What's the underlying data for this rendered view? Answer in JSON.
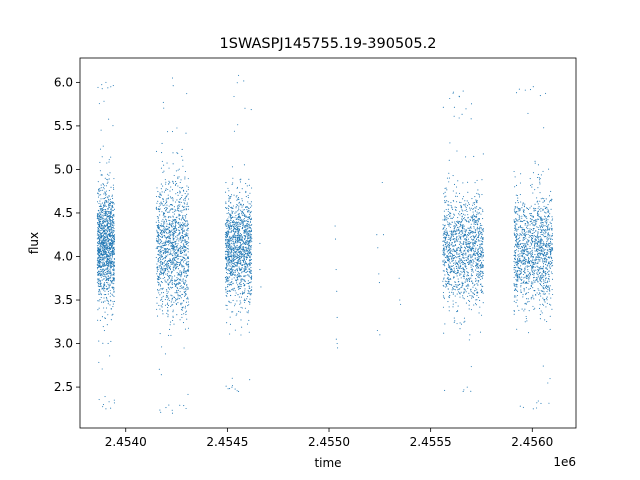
{
  "chart_data": {
    "type": "scatter",
    "title": "1SWASPJ145755.19-390505.2",
    "xlabel": "time",
    "ylabel": "flux",
    "x_offset_label": "1e6",
    "xlim": [
      2453775,
      2456215
    ],
    "ylim": [
      2.03,
      6.28
    ],
    "x_ticks": [
      2454000,
      2454500,
      2455000,
      2455500,
      2456000
    ],
    "x_tick_labels": [
      "2.4540",
      "2.4545",
      "2.4550",
      "2.4555",
      "2.4560"
    ],
    "y_ticks": [
      2.5,
      3.0,
      3.5,
      4.0,
      4.5,
      5.0,
      5.5,
      6.0
    ],
    "y_tick_labels": [
      "2.5",
      "3.0",
      "3.5",
      "4.0",
      "4.5",
      "5.0",
      "5.5",
      "6.0"
    ],
    "grid": false,
    "marker_color": "#1f77b4",
    "clusters": [
      {
        "x_start": 2453860,
        "x_end": 2453945,
        "y_center": 4.15,
        "y_spread": 0.32,
        "max_y": 6.0,
        "min_y": 2.25
      },
      {
        "x_start": 2454150,
        "x_end": 2454310,
        "y_center": 4.1,
        "y_spread": 0.38,
        "max_y": 6.05,
        "min_y": 2.2
      },
      {
        "x_start": 2454490,
        "x_end": 2454620,
        "y_center": 4.1,
        "y_spread": 0.3,
        "max_y": 6.08,
        "min_y": 2.45
      },
      {
        "x_start": 2455560,
        "x_end": 2455760,
        "y_center": 4.08,
        "y_spread": 0.32,
        "max_y": 5.9,
        "min_y": 2.45
      },
      {
        "x_start": 2455910,
        "x_end": 2456100,
        "y_center": 4.08,
        "y_spread": 0.32,
        "max_y": 5.95,
        "min_y": 2.25
      }
    ],
    "sparse_points": [
      {
        "x": 2454660,
        "y": 4.15
      },
      {
        "x": 2454665,
        "y": 3.65
      },
      {
        "x": 2454660,
        "y": 3.85
      },
      {
        "x": 2455030,
        "y": 4.35
      },
      {
        "x": 2455032,
        "y": 4.2
      },
      {
        "x": 2455035,
        "y": 3.85
      },
      {
        "x": 2455038,
        "y": 3.6
      },
      {
        "x": 2455040,
        "y": 3.3
      },
      {
        "x": 2455040,
        "y": 3.0
      },
      {
        "x": 2455042,
        "y": 2.95
      },
      {
        "x": 2455036,
        "y": 3.05
      },
      {
        "x": 2455235,
        "y": 4.25
      },
      {
        "x": 2455240,
        "y": 4.1
      },
      {
        "x": 2455245,
        "y": 3.8
      },
      {
        "x": 2455248,
        "y": 3.7
      },
      {
        "x": 2455238,
        "y": 3.15
      },
      {
        "x": 2455250,
        "y": 3.1
      },
      {
        "x": 2455262,
        "y": 4.85
      },
      {
        "x": 2455268,
        "y": 4.25
      },
      {
        "x": 2455345,
        "y": 3.75
      },
      {
        "x": 2455348,
        "y": 3.5
      },
      {
        "x": 2455352,
        "y": 3.45
      }
    ]
  }
}
